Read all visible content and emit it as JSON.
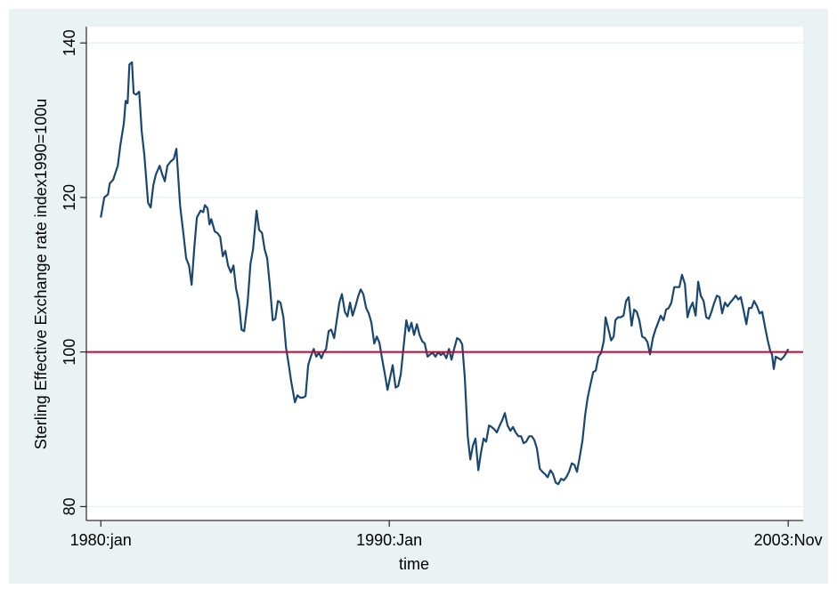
{
  "chart_data": {
    "type": "line",
    "x_label": "time",
    "y_label": "Sterling Effective Exchange rate index1990=100u",
    "xlim": [
      1979.5,
      2004.35
    ],
    "ylim": [
      78.2,
      142.1
    ],
    "xticks": [
      {
        "value": 1980,
        "label": "1980:jan"
      },
      {
        "value": 1990,
        "label": "1990:Jan"
      },
      {
        "value": 2003.83,
        "label": "2003:Nov"
      }
    ],
    "yticks": [
      80,
      100,
      120,
      140
    ],
    "grid": true,
    "reference_line": {
      "value": 100,
      "color": "#c10534"
    },
    "series": [
      {
        "color": "#1a476f",
        "x": [
          1980.0,
          1980.12,
          1980.25,
          1980.31,
          1980.43,
          1980.49,
          1980.59,
          1980.68,
          1980.8,
          1980.86,
          1980.93,
          1980.99,
          1981.08,
          1981.14,
          1981.23,
          1981.33,
          1981.42,
          1981.51,
          1981.64,
          1981.73,
          1981.82,
          1981.91,
          1982.04,
          1982.13,
          1982.22,
          1982.31,
          1982.41,
          1982.53,
          1982.62,
          1982.75,
          1982.87,
          1982.96,
          1983.06,
          1983.15,
          1983.24,
          1983.33,
          1983.46,
          1983.55,
          1983.61,
          1983.7,
          1983.77,
          1983.83,
          1983.95,
          1984.04,
          1984.14,
          1984.23,
          1984.32,
          1984.41,
          1984.51,
          1984.6,
          1984.69,
          1984.78,
          1984.88,
          1984.97,
          1985.09,
          1985.19,
          1985.28,
          1985.4,
          1985.49,
          1985.59,
          1985.68,
          1985.77,
          1985.86,
          1985.96,
          1986.05,
          1986.14,
          1986.23,
          1986.33,
          1986.42,
          1986.51,
          1986.6,
          1986.73,
          1986.82,
          1986.91,
          1987.01,
          1987.1,
          1987.19,
          1987.28,
          1987.38,
          1987.47,
          1987.56,
          1987.65,
          1987.72,
          1987.81,
          1987.9,
          1987.99,
          1988.09,
          1988.18,
          1988.27,
          1988.36,
          1988.46,
          1988.55,
          1988.64,
          1988.73,
          1988.83,
          1988.92,
          1989.01,
          1989.1,
          1989.2,
          1989.29,
          1989.38,
          1989.48,
          1989.57,
          1989.66,
          1989.75,
          1989.85,
          1989.94,
          1990.03,
          1990.12,
          1990.22,
          1990.31,
          1990.4,
          1990.49,
          1990.59,
          1990.68,
          1990.77,
          1990.86,
          1990.96,
          1991.05,
          1991.14,
          1991.23,
          1991.33,
          1991.42,
          1991.51,
          1991.6,
          1991.7,
          1991.79,
          1991.88,
          1991.98,
          1992.07,
          1992.16,
          1992.25,
          1992.35,
          1992.44,
          1992.53,
          1992.62,
          1992.72,
          1992.81,
          1992.9,
          1992.99,
          1993.09,
          1993.18,
          1993.27,
          1993.36,
          1993.46,
          1993.55,
          1993.64,
          1993.73,
          1993.83,
          1993.92,
          1994.01,
          1994.1,
          1994.2,
          1994.29,
          1994.38,
          1994.48,
          1994.57,
          1994.66,
          1994.75,
          1994.85,
          1994.94,
          1995.03,
          1995.12,
          1995.22,
          1995.31,
          1995.4,
          1995.49,
          1995.59,
          1995.68,
          1995.77,
          1995.86,
          1995.96,
          1996.05,
          1996.14,
          1996.23,
          1996.33,
          1996.42,
          1996.51,
          1996.6,
          1996.7,
          1996.79,
          1996.88,
          1996.98,
          1997.07,
          1997.16,
          1997.25,
          1997.35,
          1997.44,
          1997.5,
          1997.59,
          1997.69,
          1997.78,
          1997.84,
          1997.93,
          1998.02,
          1998.12,
          1998.21,
          1998.3,
          1998.4,
          1998.49,
          1998.58,
          1998.67,
          1998.77,
          1998.86,
          1998.95,
          1999.04,
          1999.14,
          1999.23,
          1999.32,
          1999.41,
          1999.51,
          1999.6,
          1999.69,
          1999.78,
          1999.88,
          1999.97,
          2000.06,
          2000.15,
          2000.25,
          2000.34,
          2000.43,
          2000.52,
          2000.62,
          2000.71,
          2000.8,
          2000.9,
          2000.99,
          2001.08,
          2001.17,
          2001.27,
          2001.36,
          2001.45,
          2001.54,
          2001.64,
          2001.73,
          2001.82,
          2001.91,
          2002.01,
          2002.1,
          2002.19,
          2002.28,
          2002.38,
          2002.47,
          2002.56,
          2002.65,
          2002.75,
          2002.84,
          2002.93,
          2003.02,
          2003.12,
          2003.21,
          2003.27,
          2003.33,
          2003.4,
          2003.49,
          2003.58,
          2003.68,
          2003.77,
          2003.83
        ],
        "values": [
          117.4,
          120,
          120.4,
          121.8,
          122.3,
          123,
          124.1,
          126.8,
          129.6,
          132.5,
          132.2,
          137.2,
          137.5,
          133.5,
          133.3,
          133.7,
          128.5,
          125.5,
          119.3,
          118.7,
          121.6,
          123,
          124.1,
          123,
          122.1,
          124.1,
          124.6,
          125,
          126.3,
          118.9,
          115.1,
          112.1,
          111.2,
          108.7,
          113.5,
          117.4,
          118.3,
          118.1,
          119,
          118.6,
          116.5,
          117.2,
          115.6,
          115.4,
          114.9,
          112.4,
          113.1,
          111.2,
          110.3,
          111.2,
          108.2,
          106.7,
          102.9,
          102.7,
          106.4,
          111.4,
          113.3,
          118.3,
          115.8,
          115.4,
          113.3,
          112.1,
          108.7,
          104.1,
          104.3,
          106.6,
          106.4,
          104.5,
          100.6,
          98.5,
          96.2,
          93.5,
          94.4,
          94.1,
          94.1,
          94.3,
          98.3,
          99.4,
          100.4,
          99.4,
          99.9,
          99.2,
          99.9,
          100.4,
          102.7,
          102.9,
          101.8,
          104.1,
          106.4,
          107.5,
          105.2,
          104.6,
          106.4,
          104.7,
          105.9,
          107.2,
          108.1,
          107.5,
          105.7,
          105,
          103.8,
          101.1,
          102,
          101.2,
          99.2,
          97.1,
          95.1,
          96.7,
          98.3,
          95.4,
          95.6,
          97.1,
          100.4,
          104.1,
          102.7,
          103.8,
          102.2,
          103.6,
          102.2,
          101.4,
          101.1,
          99.4,
          99.7,
          99.9,
          99.4,
          100,
          99.6,
          99.9,
          99.2,
          100.4,
          99,
          100.4,
          101.8,
          101.6,
          101,
          96.7,
          89.1,
          86.1,
          87.9,
          88.8,
          84.7,
          87,
          88.8,
          88.4,
          90.5,
          90.3,
          90,
          89.6,
          90.5,
          91.2,
          92.1,
          90.5,
          89.8,
          90.3,
          89.6,
          89.1,
          89.1,
          88.2,
          88.4,
          89.1,
          89.1,
          88.6,
          87.5,
          84.9,
          84.5,
          84.2,
          83.8,
          84.7,
          84.2,
          83.1,
          82.9,
          83.6,
          83.4,
          83.8,
          84.5,
          85.6,
          85.4,
          84.5,
          86.3,
          88.6,
          91.8,
          94.1,
          95.9,
          97.4,
          97.6,
          99.4,
          99.9,
          101.5,
          104.5,
          103.1,
          101.5,
          102,
          104.1,
          104.5,
          104.5,
          104.7,
          106.6,
          107.1,
          103.4,
          105.5,
          105.2,
          104.1,
          102,
          101.8,
          101.3,
          99.7,
          101.8,
          102.9,
          103.8,
          104.7,
          104.1,
          105.5,
          105.7,
          106.4,
          108.4,
          108.4,
          108.4,
          110,
          108.8,
          104.5,
          105.7,
          106.4,
          104.7,
          109.1,
          107.3,
          106.6,
          104.5,
          104.3,
          105.2,
          106.4,
          107.3,
          107.1,
          105,
          106.4,
          105.9,
          106.4,
          106.8,
          107.3,
          106.8,
          107.1,
          105.5,
          103.6,
          105.7,
          105.7,
          106.6,
          105.9,
          105,
          105.2,
          103.4,
          101.5,
          100.1,
          99.7,
          97.8,
          99.4,
          99.2,
          99,
          99.4,
          99.9,
          100.4
        ]
      }
    ]
  }
}
